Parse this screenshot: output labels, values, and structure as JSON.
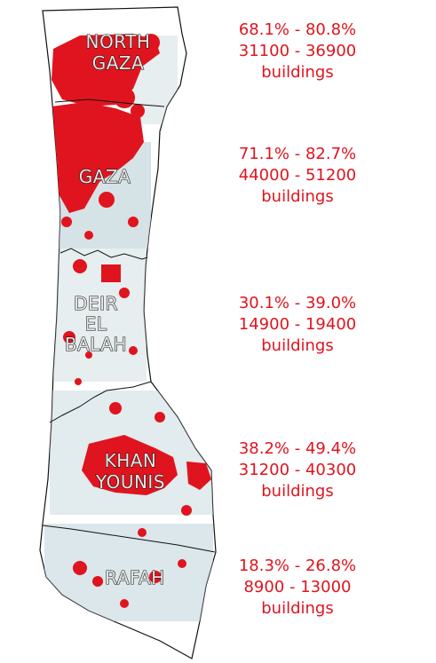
{
  "accent_color": "#e0141e",
  "governorates": [
    {
      "id": "north-gaza",
      "label_lines": [
        "NORTH",
        "GAZA"
      ],
      "percent_range": "68.1% - 80.8%",
      "buildings_range": "31100 - 36900",
      "buildings_word": "buildings"
    },
    {
      "id": "gaza",
      "label_lines": [
        "GAZA"
      ],
      "percent_range": "71.1% - 82.7%",
      "buildings_range": "44000 - 51200",
      "buildings_word": "buildings"
    },
    {
      "id": "deir-el-balah",
      "label_lines": [
        "DEIR",
        "EL",
        "BALAH"
      ],
      "percent_range": "30.1% - 39.0%",
      "buildings_range": "14900 - 19400",
      "buildings_word": "buildings"
    },
    {
      "id": "khan-younis",
      "label_lines": [
        "KHAN",
        "YOUNIS"
      ],
      "percent_range": "38.2% - 49.4%",
      "buildings_range": "31200 - 40300",
      "buildings_word": "buildings"
    },
    {
      "id": "rafah",
      "label_lines": [
        "RAFAH"
      ],
      "percent_range": "18.3% - 26.8%",
      "buildings_range": "8900 - 13000",
      "buildings_word": "buildings"
    }
  ]
}
